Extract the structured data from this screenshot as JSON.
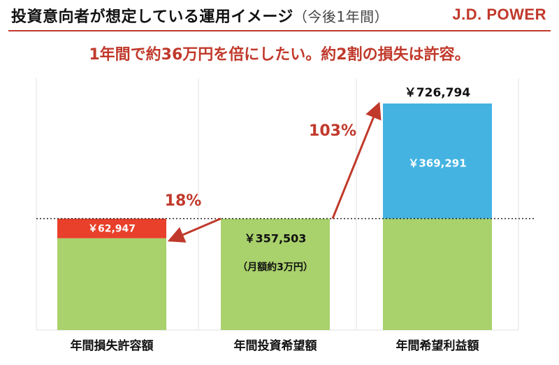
{
  "header": {
    "title": "投資意向者が想定している運用イメージ",
    "title_suffix": "（今後1年間）",
    "brand": "J.D. POWER",
    "subtitle": "1年間で約36万円を倍にしたい。約2割の損失は許容。"
  },
  "colors": {
    "green": "#a9d16c",
    "red": "#e8402a",
    "blue": "#44b3e1",
    "arrow": "#c0392b",
    "brand": "#c0392b"
  },
  "chart_data": {
    "type": "bar",
    "stacked": true,
    "categories": [
      "年間損失許容額",
      "年間投資希望額",
      "年間希望利益額"
    ],
    "series": [
      {
        "values": [
          294556,
          357503,
          357503
        ],
        "color": "#a9d16c"
      },
      {
        "values": [
          62947,
          0,
          369291
        ],
        "color_by_category": [
          "#e8402a",
          "",
          "#44b3e1"
        ]
      }
    ],
    "data_labels": {
      "loss": "￥62,947",
      "investment": "￥357,503",
      "investment_note": "（月額約3万円）",
      "gain": "￥369,291",
      "total": "￥726,794"
    },
    "annotations": {
      "loss_pct": "18%",
      "gain_pct": "103%"
    },
    "reference_value": 357503,
    "ylim": [
      0,
      726794
    ],
    "grid": false
  }
}
